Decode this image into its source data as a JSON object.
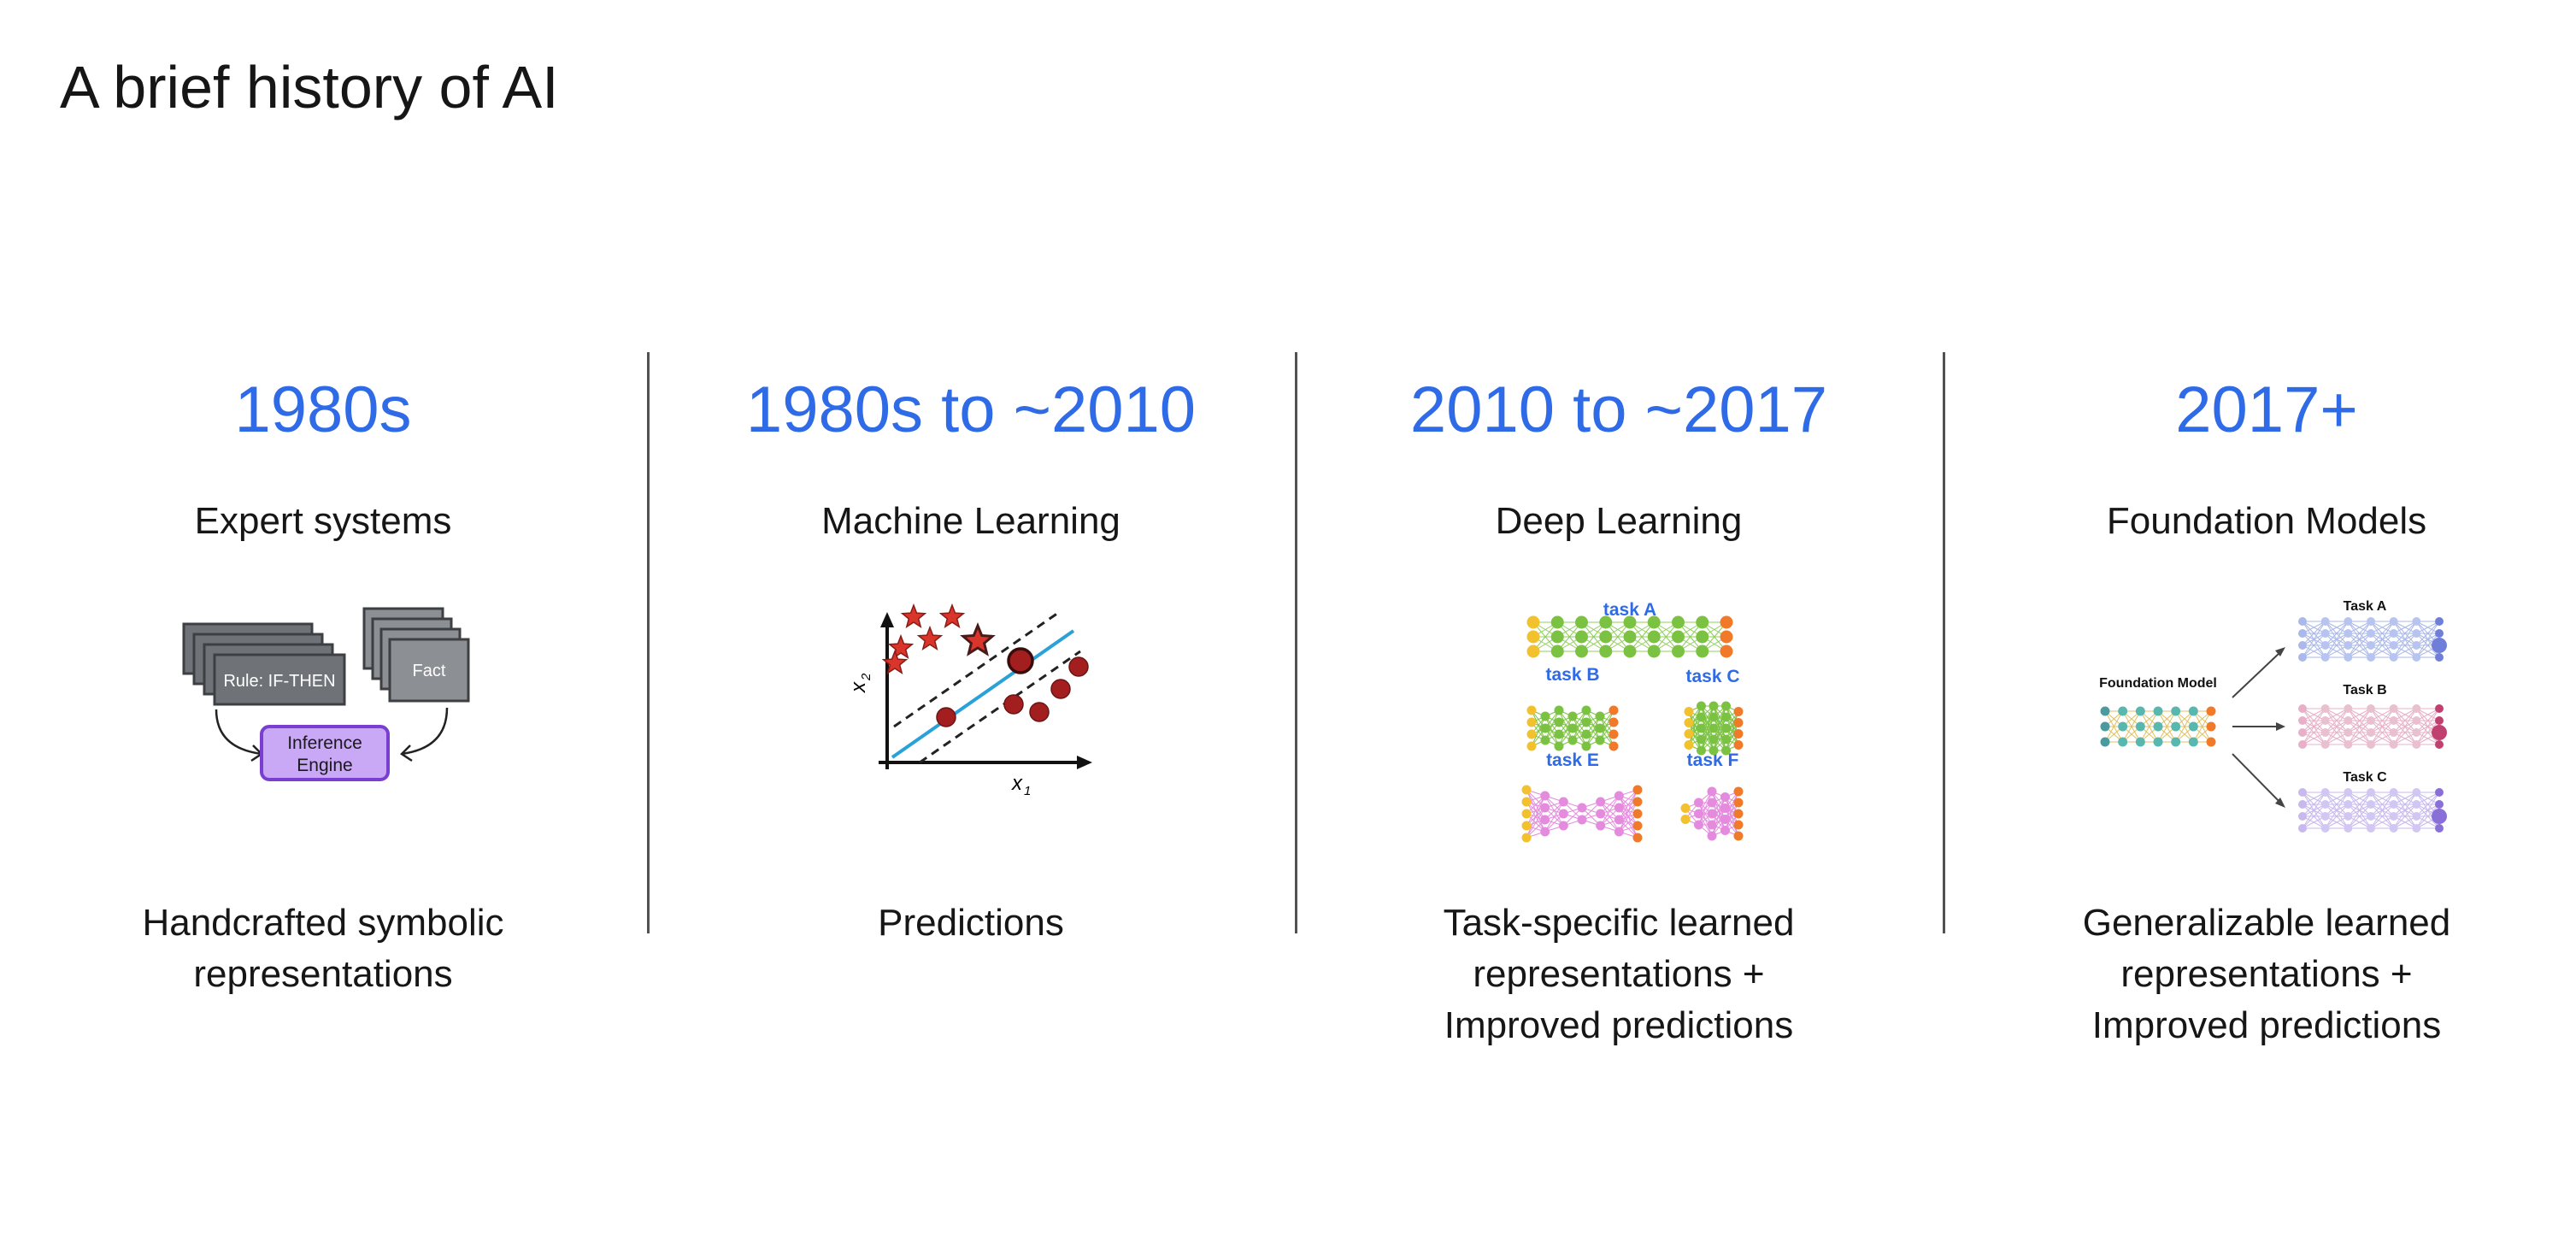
{
  "title": "A brief history of AI",
  "columns": [
    {
      "era": "1980s",
      "label": "Expert systems",
      "description": [
        "Handcrafted symbolic",
        "representations"
      ],
      "figure_text": {
        "rule": "Rule: IF-THEN",
        "fact": "Fact",
        "engine_line1": "Inference",
        "engine_line2": "Engine"
      }
    },
    {
      "era": "1980s to ~2010",
      "label": "Machine Learning",
      "description": [
        "Predictions"
      ],
      "figure_text": {
        "x1": "x",
        "x1_sub": "1",
        "x2": "x",
        "x2_sub": "2"
      }
    },
    {
      "era": "2010 to ~2017",
      "label": "Deep Learning",
      "description": [
        "Task-specific learned",
        "representations +",
        "Improved predictions"
      ],
      "figure_text": {
        "a": "task A",
        "b": "task B",
        "c": "task C",
        "e": "task E",
        "f": "task F"
      }
    },
    {
      "era": "2017+",
      "label": "Foundation Models",
      "description": [
        "Generalizable learned",
        "representations +",
        "Improved predictions"
      ],
      "figure_text": {
        "model": "Foundation Model",
        "a": "Task A",
        "b": "Task B",
        "c": "Task C"
      }
    }
  ],
  "colors": {
    "accent": "#2f6be6",
    "divider": "#525252",
    "engine_fill": "#c9a8f5",
    "engine_stroke": "#7a3fd1",
    "star": "#d9352b",
    "dot": "#a31f1f",
    "line": "#2aa1d8"
  }
}
